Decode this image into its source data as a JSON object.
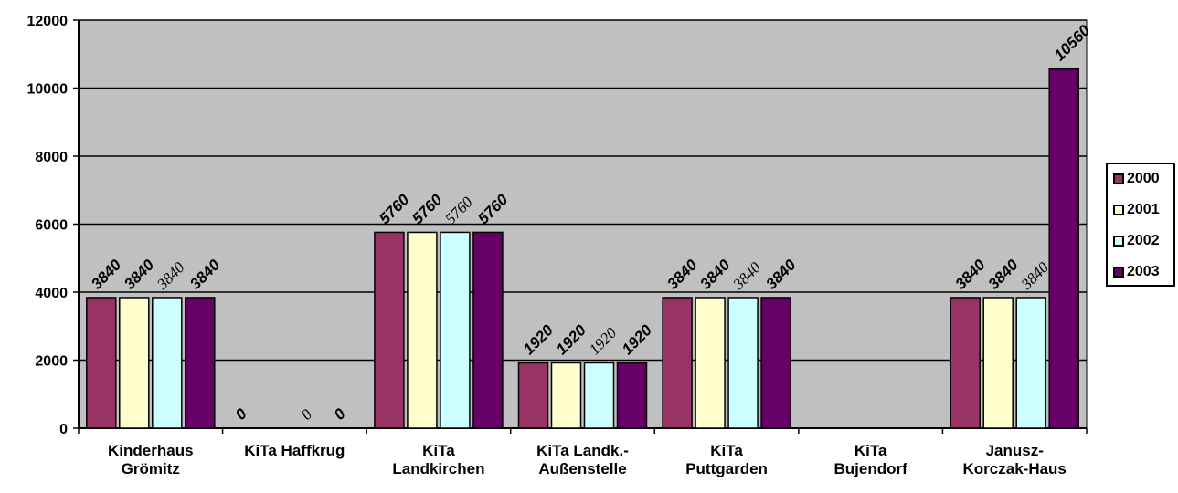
{
  "chart_data": {
    "type": "bar",
    "title": "",
    "xlabel": "",
    "ylabel": "",
    "ylim": [
      0,
      12000
    ],
    "yticks": [
      0,
      2000,
      4000,
      6000,
      8000,
      10000,
      12000
    ],
    "grid": true,
    "legend_position": "right",
    "plot_background": "#C0C0C0",
    "categories": [
      [
        "Kinderhaus",
        "Grömitz"
      ],
      [
        "KiTa Haffkrug"
      ],
      [
        "KiTa",
        "Landkirchen"
      ],
      [
        "KiTa Landk.-",
        "Außenstelle"
      ],
      [
        "KiTa",
        "Puttgarden"
      ],
      [
        "KiTa",
        "Bujendorf"
      ],
      [
        "Janusz-",
        "Korczak-Haus"
      ]
    ],
    "series": [
      {
        "name": "2000",
        "color": "#993366",
        "values": [
          3840,
          0,
          5760,
          1920,
          3840,
          null,
          3840
        ],
        "labels": [
          "3840",
          "0",
          "5760",
          "1920",
          "3840",
          "",
          "3840"
        ],
        "label_style": "bold"
      },
      {
        "name": "2001",
        "color": "#FFFFCC",
        "values": [
          3840,
          null,
          5760,
          1920,
          3840,
          null,
          3840
        ],
        "labels": [
          "3840",
          "",
          "5760",
          "1920",
          "3840",
          "",
          "3840"
        ],
        "label_style": "bold"
      },
      {
        "name": "2002",
        "color": "#CCFFFF",
        "values": [
          3840,
          0,
          5760,
          1920,
          3840,
          null,
          3840
        ],
        "labels": [
          "3840",
          "0",
          "5760",
          "1920",
          "3840",
          "",
          "3840"
        ],
        "label_style": "serif"
      },
      {
        "name": "2003",
        "color": "#660066",
        "values": [
          3840,
          0,
          5760,
          1920,
          3840,
          null,
          10560
        ],
        "labels": [
          "3840",
          "0",
          "5760",
          "1920",
          "3840",
          "",
          "10560"
        ],
        "label_style": "bold"
      }
    ]
  }
}
